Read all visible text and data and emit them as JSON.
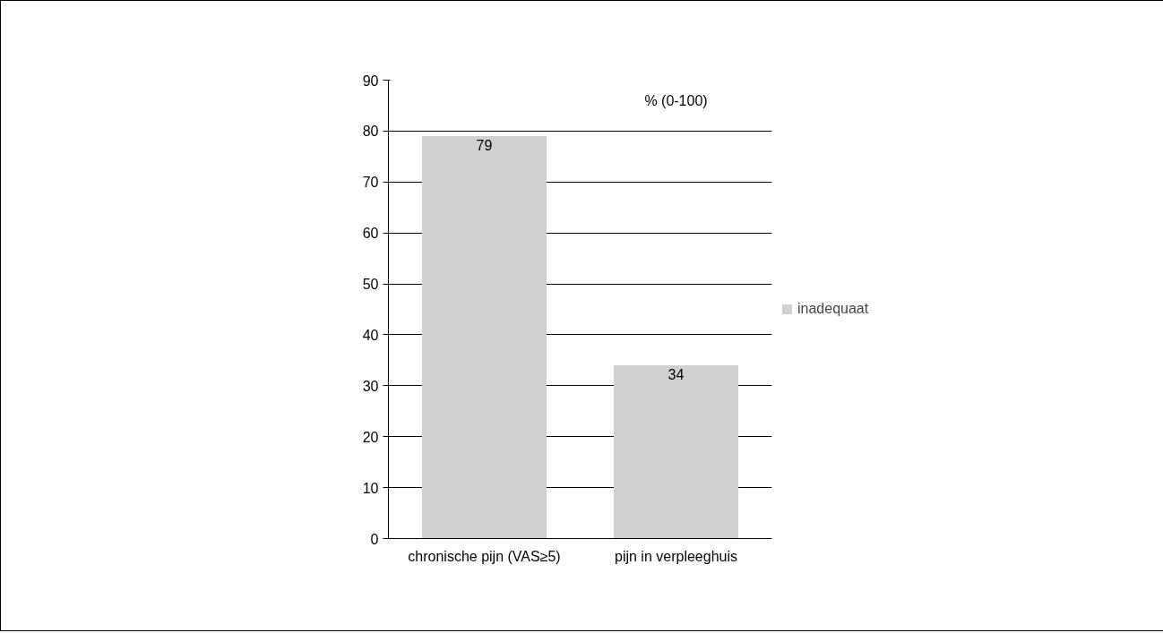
{
  "chart_data": {
    "type": "bar",
    "categories": [
      "chronische pijn (VAS≥5)",
      "pijn in verpleeghuis"
    ],
    "series": [
      {
        "name": "inadequaat",
        "color": "#d0d0d0",
        "values": [
          79,
          34
        ]
      }
    ],
    "ylim": [
      0,
      90
    ],
    "yticks": [
      0,
      10,
      20,
      30,
      40,
      50,
      60,
      70,
      80,
      90
    ],
    "grid": "y",
    "legend": "right",
    "data_labels": true,
    "annotations": [
      "% (0-100)"
    ]
  }
}
